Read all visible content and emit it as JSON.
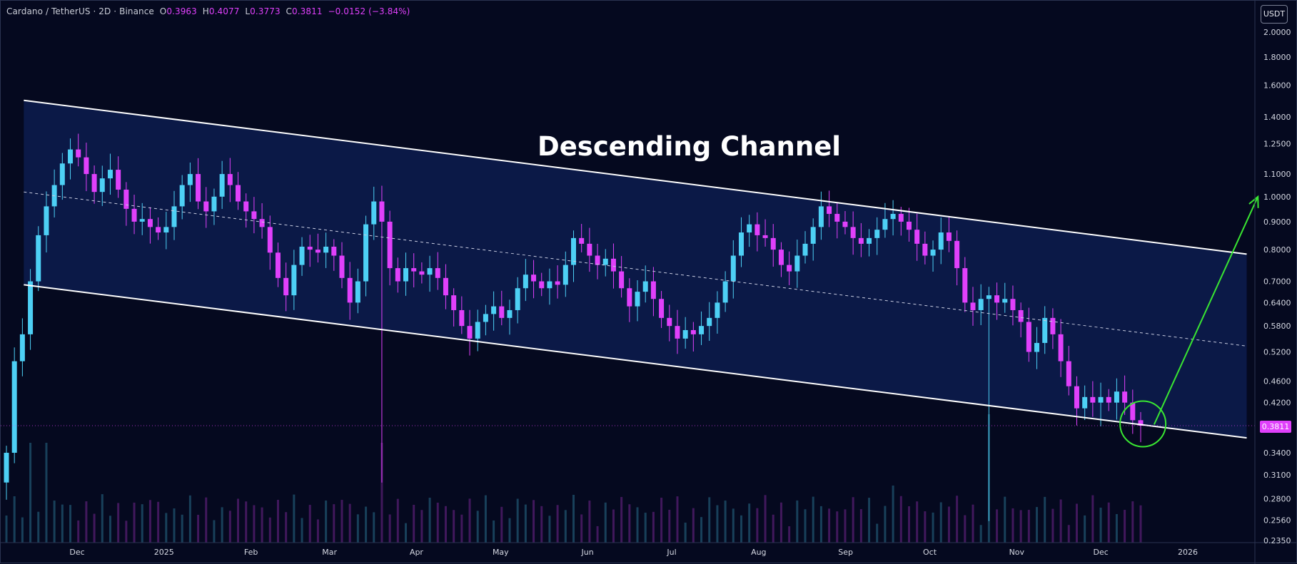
{
  "legend": {
    "symbol": "Cardano / TetherUS · 2D · Binance",
    "o_label": "O",
    "o_value": "0.3963",
    "h_label": "H",
    "h_value": "0.4077",
    "l_label": "L",
    "l_value": "0.3773",
    "c_label": "C",
    "c_value": "0.3811",
    "change": "−0.0152 (−3.84%)"
  },
  "price_axis": {
    "unit": "USDT",
    "current_price_label": "0.3811",
    "tick_labels": [
      "2.0000",
      "1.8000",
      "1.6000",
      "1.4000",
      "1.2500",
      "1.1000",
      "1.0000",
      "0.9000",
      "0.8000",
      "0.7000",
      "0.6400",
      "0.5800",
      "0.5200",
      "0.4600",
      "0.4200",
      "0.3400",
      "0.3100",
      "0.2800",
      "0.2560",
      "0.2350"
    ]
  },
  "time_axis": {
    "tick_labels": [
      "Dec",
      "2025",
      "Feb",
      "Mar",
      "Apr",
      "May",
      "Jun",
      "Jul",
      "Aug",
      "Sep",
      "Oct",
      "Nov",
      "Dec",
      "2026"
    ]
  },
  "annotation": {
    "title": "Descending Channel"
  },
  "colors": {
    "background": "#05091f",
    "channel_fill": "#0c1a4a",
    "up_candle": "#4dd0f5",
    "down_candle": "#e040fb",
    "channel_line": "#ffffff",
    "arrow": "#39e632",
    "circle": "#39e632"
  },
  "chart_data": {
    "type": "candlestick",
    "symbol": "Cardano / TetherUS",
    "interval": "2D",
    "exchange": "Binance",
    "y_scale": "log",
    "ylim": [
      0.235,
      2.05
    ],
    "last_candle": {
      "open": 0.3963,
      "high": 0.4077,
      "low": 0.3773,
      "close": 0.3811
    },
    "channel": {
      "upper": [
        {
          "x": "2024-11-12",
          "y": 1.5
        },
        {
          "x": "2026-01-22",
          "y": 0.785
        }
      ],
      "lower": [
        {
          "x": "2024-11-12",
          "y": 0.69
        },
        {
          "x": "2026-01-22",
          "y": 0.362
        }
      ],
      "mid": [
        {
          "x": "2024-11-12",
          "y": 1.02
        },
        {
          "x": "2026-01-22",
          "y": 0.533
        }
      ]
    },
    "projection_arrow": [
      {
        "x": "2025-12-20",
        "y": 0.383
      },
      {
        "x": "2026-01-26",
        "y": 1.0
      }
    ],
    "circle_center": {
      "x": "2025-12-16",
      "y": 0.384
    },
    "closes": [
      0.34,
      0.5,
      0.56,
      0.7,
      0.85,
      0.96,
      1.05,
      1.15,
      1.22,
      1.18,
      1.1,
      1.02,
      1.08,
      1.12,
      1.03,
      0.95,
      0.9,
      0.91,
      0.88,
      0.86,
      0.88,
      0.96,
      1.05,
      1.1,
      0.98,
      0.94,
      1.0,
      1.1,
      1.05,
      0.98,
      0.94,
      0.91,
      0.88,
      0.79,
      0.71,
      0.66,
      0.75,
      0.81,
      0.8,
      0.79,
      0.81,
      0.78,
      0.71,
      0.64,
      0.7,
      0.89,
      0.98,
      0.9,
      0.74,
      0.7,
      0.74,
      0.73,
      0.72,
      0.74,
      0.71,
      0.66,
      0.62,
      0.58,
      0.55,
      0.59,
      0.61,
      0.63,
      0.6,
      0.62,
      0.68,
      0.72,
      0.7,
      0.68,
      0.7,
      0.69,
      0.75,
      0.84,
      0.82,
      0.78,
      0.75,
      0.77,
      0.73,
      0.68,
      0.63,
      0.67,
      0.7,
      0.65,
      0.6,
      0.58,
      0.55,
      0.57,
      0.56,
      0.58,
      0.6,
      0.64,
      0.7,
      0.78,
      0.86,
      0.89,
      0.85,
      0.84,
      0.8,
      0.75,
      0.73,
      0.78,
      0.82,
      0.88,
      0.96,
      0.93,
      0.9,
      0.88,
      0.84,
      0.82,
      0.84,
      0.87,
      0.91,
      0.93,
      0.9,
      0.87,
      0.82,
      0.78,
      0.8,
      0.86,
      0.83,
      0.74,
      0.64,
      0.62,
      0.65,
      0.66,
      0.64,
      0.65,
      0.62,
      0.59,
      0.52,
      0.54,
      0.6,
      0.56,
      0.5,
      0.45,
      0.41,
      0.43,
      0.42,
      0.43,
      0.42,
      0.44,
      0.42,
      0.39,
      0.3811
    ],
    "volume_note": "volume histogram shown at bottom, relative values"
  }
}
